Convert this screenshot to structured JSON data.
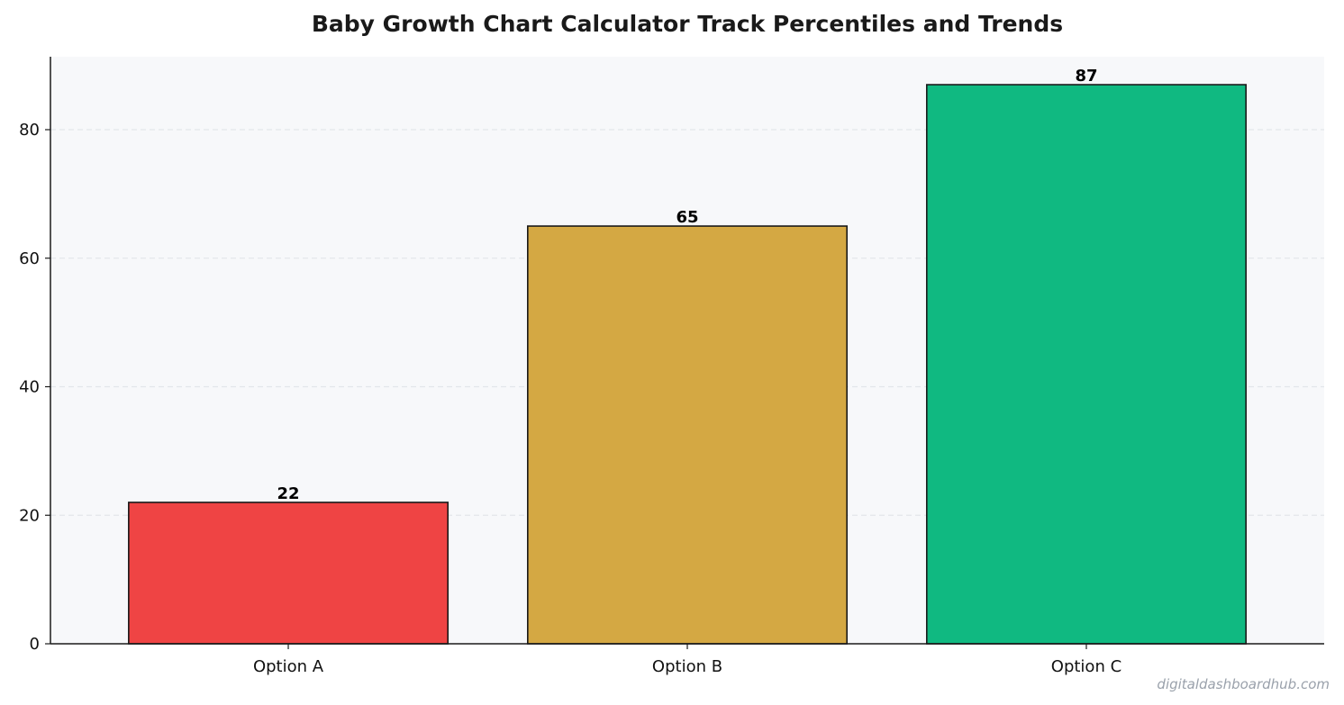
{
  "chart_data": {
    "type": "bar",
    "title": "Baby Growth Chart Calculator  Track Percentiles and Trends",
    "xlabel": "",
    "ylabel": "",
    "categories": [
      "Option A",
      "Option B",
      "Option C"
    ],
    "values": [
      22,
      65,
      87
    ],
    "value_labels": [
      "22",
      "65",
      "87"
    ],
    "bar_colors": [
      "#ef4444",
      "#d4a843",
      "#10b981"
    ],
    "ylim": [
      0,
      91.35
    ],
    "yticks": [
      0,
      20,
      40,
      60,
      80
    ],
    "ytick_labels": [
      "0",
      "20",
      "40",
      "60",
      "80"
    ],
    "grid": "horizontal dashed",
    "legend": "none"
  },
  "watermark": "digitaldashboardhub.com",
  "colors": {
    "plot_background": "#f7f8fa",
    "grid": "#e3e6ea",
    "axis": "#1a1a1a",
    "bar_edge": "#1a1a1a"
  }
}
